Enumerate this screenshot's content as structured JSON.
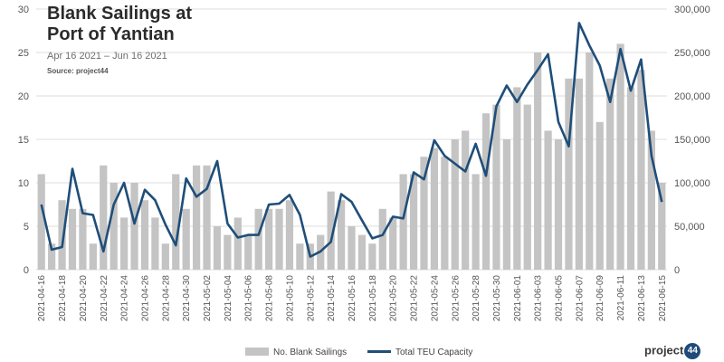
{
  "chart_data": {
    "type": "bar",
    "title": "Blank Sailings at\nPort of Yantian",
    "subtitle": "Apr 16 2021 – Jun 16 2021",
    "source": "Source: project44",
    "x": [
      "2021-04-16",
      "2021-04-17",
      "2021-04-18",
      "2021-04-19",
      "2021-04-20",
      "2021-04-21",
      "2021-04-22",
      "2021-04-23",
      "2021-04-24",
      "2021-04-25",
      "2021-04-26",
      "2021-04-27",
      "2021-04-28",
      "2021-04-29",
      "2021-04-30",
      "2021-05-01",
      "2021-05-02",
      "2021-05-03",
      "2021-05-04",
      "2021-05-05",
      "2021-05-06",
      "2021-05-07",
      "2021-05-08",
      "2021-05-09",
      "2021-05-10",
      "2021-05-11",
      "2021-05-12",
      "2021-05-13",
      "2021-05-14",
      "2021-05-15",
      "2021-05-16",
      "2021-05-17",
      "2021-05-18",
      "2021-05-19",
      "2021-05-20",
      "2021-05-21",
      "2021-05-22",
      "2021-05-23",
      "2021-05-24",
      "2021-05-25",
      "2021-05-26",
      "2021-05-27",
      "2021-05-28",
      "2021-05-29",
      "2021-05-30",
      "2021-05-31",
      "2021-06-01",
      "2021-06-02",
      "2021-06-03",
      "2021-06-04",
      "2021-06-05",
      "2021-06-06",
      "2021-06-07",
      "2021-06-08",
      "2021-06-09",
      "2021-06-10",
      "2021-06-11",
      "2021-06-12",
      "2021-06-13",
      "2021-06-14",
      "2021-06-15"
    ],
    "x_tick_labels": [
      "2021-04-16",
      "2021-04-18",
      "2021-04-20",
      "2021-04-22",
      "2021-04-24",
      "2021-04-26",
      "2021-04-28",
      "2021-04-30",
      "2021-05-02",
      "2021-05-04",
      "2021-05-06",
      "2021-05-08",
      "2021-05-10",
      "2021-05-12",
      "2021-05-14",
      "2021-05-16",
      "2021-05-18",
      "2021-05-20",
      "2021-05-22",
      "2021-05-24",
      "2021-05-26",
      "2021-05-28",
      "2021-05-30",
      "2021-06-01",
      "2021-06-03",
      "2021-06-05",
      "2021-06-07",
      "2021-06-09",
      "2021-06-11",
      "2021-06-13",
      "2021-06-15"
    ],
    "series": [
      {
        "name": "No. Blank Sailings",
        "type": "bar",
        "axis": "left",
        "color": "#c4c4c4",
        "values": [
          11,
          3,
          8,
          7,
          7,
          3,
          12,
          10,
          6,
          10,
          8,
          6,
          3,
          11,
          7,
          12,
          12,
          5,
          4,
          6,
          4,
          7,
          7,
          7,
          8,
          3,
          3,
          4,
          9,
          8,
          5,
          4,
          3,
          7,
          6,
          11,
          11,
          13,
          14,
          13,
          15,
          16,
          11,
          18,
          19,
          15,
          21,
          19,
          25,
          16,
          15,
          22,
          22,
          25,
          17,
          22,
          26,
          21,
          23,
          16,
          10
        ]
      },
      {
        "name": "Total TEU Capacity",
        "type": "line",
        "axis": "right",
        "color": "#1f4e79",
        "values": [
          75000,
          23000,
          26000,
          116000,
          65000,
          63000,
          21000,
          75000,
          100000,
          53000,
          92000,
          80000,
          52000,
          28000,
          105000,
          84000,
          93000,
          125000,
          53000,
          37000,
          40000,
          40000,
          75000,
          76000,
          86000,
          63000,
          15000,
          21000,
          32000,
          87000,
          78000,
          57000,
          36000,
          40000,
          61000,
          59000,
          112000,
          104000,
          149000,
          131000,
          122000,
          113000,
          145000,
          108000,
          188000,
          212000,
          193000,
          213000,
          230000,
          248000,
          170000,
          142000,
          284000,
          258000,
          235000,
          193000,
          254000,
          206000,
          242000,
          131000,
          78000
        ]
      }
    ],
    "yleft": {
      "min": 0,
      "max": 30,
      "ticks": [
        0,
        5,
        10,
        15,
        20,
        25,
        30
      ]
    },
    "yright": {
      "min": 0,
      "max": 300000,
      "ticks": [
        "0",
        "50,000",
        "100,000",
        "150,000",
        "200,000",
        "250,000",
        "300,000"
      ]
    },
    "grid": true,
    "legend": {
      "placement": "bottom",
      "entries": [
        "No. Blank Sailings",
        "Total TEU Capacity"
      ]
    }
  },
  "logo": {
    "text": "project",
    "number": "44"
  }
}
